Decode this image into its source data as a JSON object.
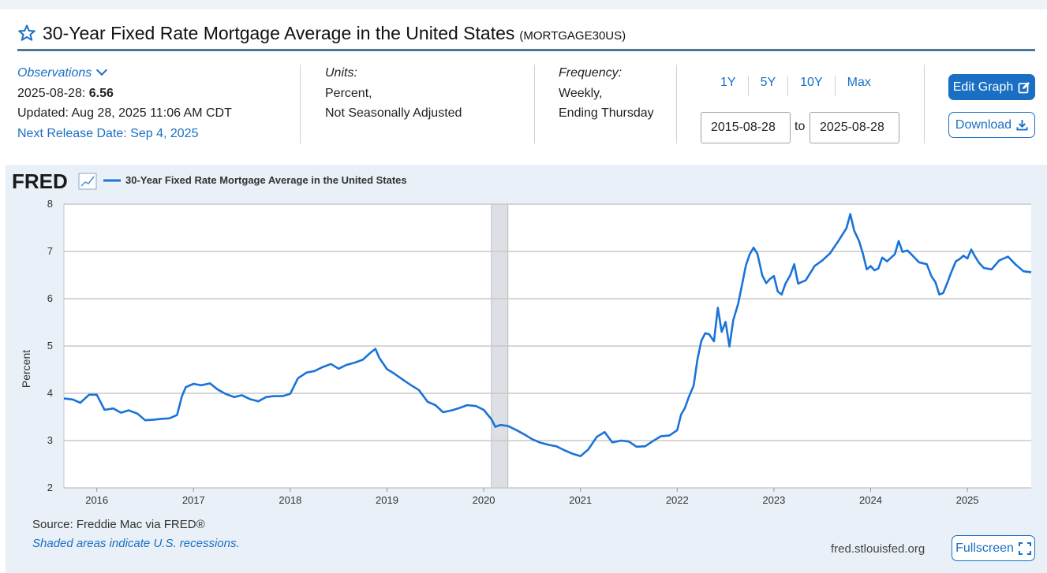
{
  "header": {
    "title": "30-Year Fixed Rate Mortgage Average in the United States",
    "series_id": "(MORTGAGE30US)"
  },
  "observations": {
    "label": "Observations",
    "date": "2025-08-28:",
    "value": "6.56",
    "updated": "Updated: Aug 28, 2025 11:06 AM CDT",
    "next_release": "Next Release Date: Sep 4, 2025"
  },
  "units": {
    "label": "Units:",
    "line1": "Percent,",
    "line2": "Not Seasonally Adjusted"
  },
  "frequency": {
    "label": "Frequency:",
    "line1": "Weekly,",
    "line2": "Ending Thursday"
  },
  "range": {
    "buttons": [
      "1Y",
      "5Y",
      "10Y",
      "Max"
    ],
    "start": "2015-08-28",
    "to": "to",
    "end": "2025-08-28"
  },
  "actions": {
    "edit_graph": "Edit Graph",
    "download": "Download",
    "fullscreen": "Fullscreen"
  },
  "footer": {
    "source": "Source: Freddie Mac via FRED®",
    "shaded": "Shaded areas indicate U.S. recessions.",
    "site": "fred.stlouisfed.org"
  },
  "colors": {
    "line": "#1a73d8",
    "recession": "#dcdfe3",
    "accent": "#1a6fc4"
  },
  "chart_data": {
    "type": "line",
    "brand": "FRED",
    "legend": "30-Year Fixed Rate Mortgage Average in the United States",
    "ylabel": "Percent",
    "xlabel": "",
    "ylim": [
      2,
      8
    ],
    "yticks": [
      2,
      3,
      4,
      5,
      6,
      7,
      8
    ],
    "xlim": [
      2015.66,
      2025.66
    ],
    "xticks": [
      2016,
      2017,
      2018,
      2019,
      2020,
      2021,
      2022,
      2023,
      2024,
      2025
    ],
    "grid": true,
    "recessions": [
      [
        2020.08,
        2020.25
      ]
    ],
    "series": [
      {
        "x": [
          2015.66,
          2015.75,
          2015.83,
          2015.92,
          2016.0,
          2016.08,
          2016.17,
          2016.25,
          2016.33,
          2016.42,
          2016.5,
          2016.58,
          2016.67,
          2016.75,
          2016.83,
          2016.88,
          2016.92,
          2017.0,
          2017.08,
          2017.17,
          2017.25,
          2017.33,
          2017.42,
          2017.5,
          2017.58,
          2017.67,
          2017.75,
          2017.83,
          2017.92,
          2018.0,
          2018.08,
          2018.17,
          2018.25,
          2018.33,
          2018.42,
          2018.5,
          2018.58,
          2018.67,
          2018.75,
          2018.83,
          2018.88,
          2018.92,
          2019.0,
          2019.08,
          2019.17,
          2019.25,
          2019.33,
          2019.42,
          2019.5,
          2019.58,
          2019.67,
          2019.75,
          2019.83,
          2019.92,
          2020.0,
          2020.08,
          2020.12,
          2020.17,
          2020.25,
          2020.33,
          2020.42,
          2020.5,
          2020.58,
          2020.67,
          2020.75,
          2020.83,
          2020.92,
          2021.0,
          2021.08,
          2021.17,
          2021.25,
          2021.33,
          2021.42,
          2021.5,
          2021.58,
          2021.67,
          2021.75,
          2021.83,
          2021.92,
          2022.0,
          2022.04,
          2022.08,
          2022.12,
          2022.17,
          2022.21,
          2022.25,
          2022.29,
          2022.33,
          2022.38,
          2022.42,
          2022.46,
          2022.5,
          2022.54,
          2022.58,
          2022.63,
          2022.67,
          2022.71,
          2022.75,
          2022.79,
          2022.83,
          2022.88,
          2022.92,
          2022.96,
          2023.0,
          2023.04,
          2023.08,
          2023.12,
          2023.17,
          2023.21,
          2023.25,
          2023.33,
          2023.42,
          2023.5,
          2023.58,
          2023.67,
          2023.75,
          2023.79,
          2023.83,
          2023.88,
          2023.92,
          2023.96,
          2024.0,
          2024.04,
          2024.08,
          2024.12,
          2024.17,
          2024.25,
          2024.29,
          2024.33,
          2024.38,
          2024.42,
          2024.5,
          2024.58,
          2024.63,
          2024.67,
          2024.71,
          2024.75,
          2024.79,
          2024.83,
          2024.88,
          2024.92,
          2024.96,
          2025.0,
          2025.04,
          2025.08,
          2025.12,
          2025.17,
          2025.25,
          2025.33,
          2025.42,
          2025.5,
          2025.58,
          2025.66
        ],
        "y": [
          3.89,
          3.87,
          3.8,
          3.97,
          3.97,
          3.65,
          3.68,
          3.59,
          3.64,
          3.57,
          3.43,
          3.44,
          3.46,
          3.47,
          3.54,
          3.94,
          4.13,
          4.2,
          4.17,
          4.21,
          4.08,
          3.99,
          3.92,
          3.96,
          3.88,
          3.83,
          3.92,
          3.94,
          3.94,
          3.99,
          4.32,
          4.44,
          4.47,
          4.55,
          4.62,
          4.52,
          4.6,
          4.65,
          4.71,
          4.86,
          4.94,
          4.75,
          4.51,
          4.41,
          4.28,
          4.17,
          4.07,
          3.82,
          3.75,
          3.6,
          3.64,
          3.69,
          3.75,
          3.73,
          3.65,
          3.45,
          3.29,
          3.33,
          3.31,
          3.23,
          3.13,
          3.03,
          2.96,
          2.91,
          2.88,
          2.8,
          2.72,
          2.67,
          2.81,
          3.08,
          3.18,
          2.96,
          3.0,
          2.98,
          2.87,
          2.88,
          2.99,
          3.09,
          3.11,
          3.22,
          3.55,
          3.69,
          3.92,
          4.16,
          4.72,
          5.11,
          5.27,
          5.25,
          5.1,
          5.81,
          5.3,
          5.51,
          4.99,
          5.55,
          5.89,
          6.29,
          6.7,
          6.94,
          7.08,
          6.95,
          6.49,
          6.33,
          6.42,
          6.48,
          6.15,
          6.09,
          6.32,
          6.5,
          6.73,
          6.32,
          6.39,
          6.69,
          6.81,
          6.96,
          7.23,
          7.49,
          7.79,
          7.44,
          7.22,
          6.95,
          6.62,
          6.69,
          6.6,
          6.64,
          6.87,
          6.79,
          6.94,
          7.22,
          6.99,
          7.02,
          6.94,
          6.77,
          6.73,
          6.47,
          6.35,
          6.09,
          6.12,
          6.32,
          6.54,
          6.79,
          6.84,
          6.91,
          6.85,
          7.04,
          6.89,
          6.76,
          6.65,
          6.62,
          6.81,
          6.89,
          6.72,
          6.58,
          6.56
        ]
      }
    ]
  }
}
